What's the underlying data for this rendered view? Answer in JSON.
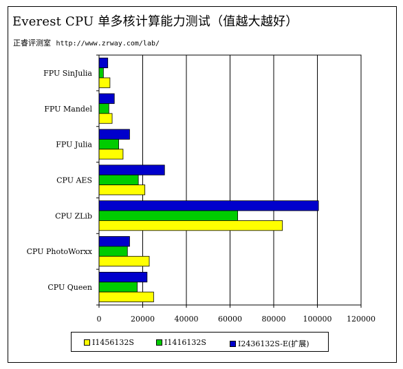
{
  "title": "Everest CPU 单多核计算能力测试（值越大越好）",
  "source_label": "正睿评测室",
  "source_url": "http://www.zrway.com/lab/",
  "chart_data": {
    "type": "bar",
    "orientation": "horizontal",
    "title": "Everest CPU 单多核计算能力测试（值越大越好）",
    "categories": [
      "FPU SinJulia",
      "FPU Mandel",
      "FPU Julia",
      "CPU AES",
      "CPU ZLib",
      "CPU PhotoWorxx",
      "CPU Queen"
    ],
    "series": [
      {
        "name": "I1456132S",
        "color": "#ffff00",
        "values": [
          5000,
          6000,
          11000,
          21000,
          84000,
          23000,
          25000
        ]
      },
      {
        "name": "I1416132S",
        "color": "#00cc00",
        "values": [
          2000,
          4500,
          9000,
          18000,
          63500,
          13000,
          17500
        ]
      },
      {
        "name": "I2436132S-E(扩展)",
        "color": "#0000cc",
        "values": [
          4000,
          7000,
          14000,
          30000,
          100500,
          14000,
          22000
        ]
      }
    ],
    "xlim": [
      0,
      120000
    ],
    "xticks": [
      0,
      20000,
      40000,
      60000,
      80000,
      100000,
      120000
    ],
    "xtick_labels": [
      "0",
      "20000",
      "40000",
      "60000",
      "80000",
      "100000",
      "120000"
    ],
    "grid": "vertical",
    "legend_position": "bottom"
  }
}
